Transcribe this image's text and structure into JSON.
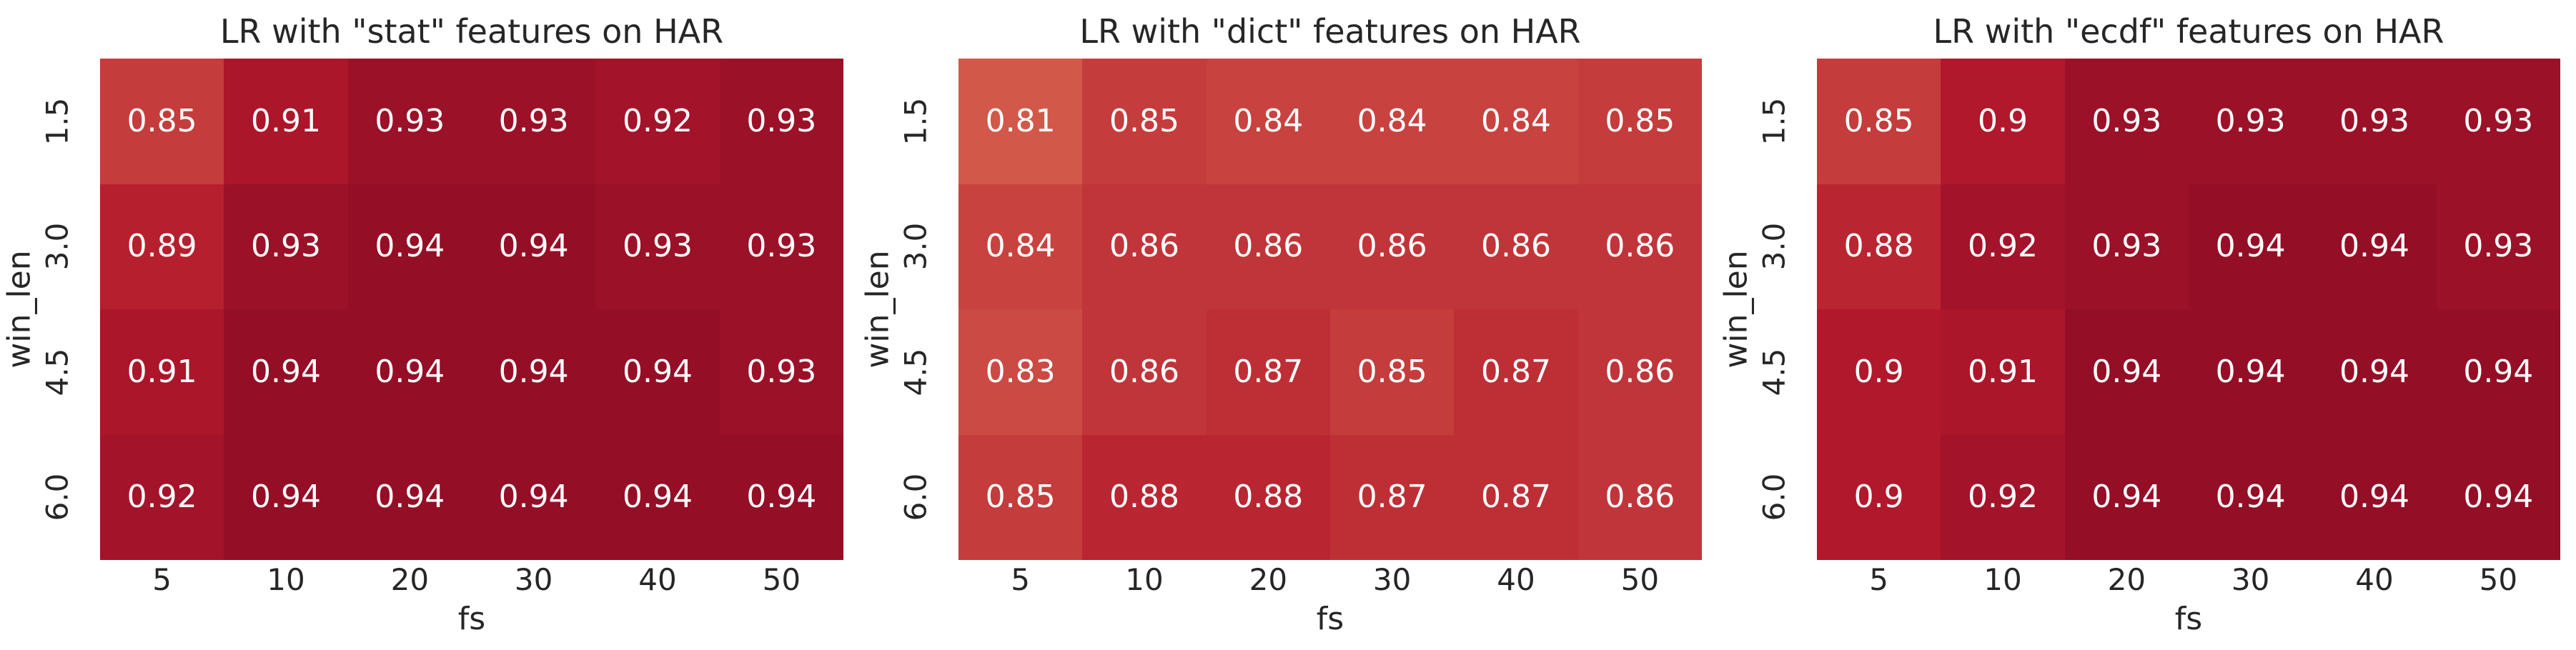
{
  "figure": {
    "background": "#ffffff",
    "text_color": "#262626",
    "annotation_color": "#ffffff",
    "colormap": {
      "name": "RdBu_r",
      "vmin": 0.0,
      "vmax": 1.0,
      "anchors": [
        {
          "value": 0.7,
          "rgb": [
            244,
            165,
            130
          ]
        },
        {
          "value": 0.8,
          "rgb": [
            214,
            96,
            77
          ]
        },
        {
          "value": 0.9,
          "rgb": [
            178,
            24,
            43
          ]
        },
        {
          "value": 1.0,
          "rgb": [
            103,
            0,
            31
          ]
        }
      ]
    }
  },
  "chart_data": [
    {
      "type": "heatmap",
      "title": "LR with \"stat\" features on HAR",
      "xlabel": "fs",
      "ylabel": "win_len",
      "x_ticks": [
        "5",
        "10",
        "20",
        "30",
        "40",
        "50"
      ],
      "y_ticks": [
        "1.5",
        "3.0",
        "4.5",
        "6.0"
      ],
      "annotations_shown": true,
      "legend": "none",
      "values": [
        [
          0.85,
          0.91,
          0.93,
          0.93,
          0.92,
          0.93
        ],
        [
          0.89,
          0.93,
          0.94,
          0.94,
          0.93,
          0.93
        ],
        [
          0.91,
          0.94,
          0.94,
          0.94,
          0.94,
          0.93
        ],
        [
          0.92,
          0.94,
          0.94,
          0.94,
          0.94,
          0.94
        ]
      ]
    },
    {
      "type": "heatmap",
      "title": "LR with \"dict\" features on HAR",
      "xlabel": "fs",
      "ylabel": "win_len",
      "x_ticks": [
        "5",
        "10",
        "20",
        "30",
        "40",
        "50"
      ],
      "y_ticks": [
        "1.5",
        "3.0",
        "4.5",
        "6.0"
      ],
      "annotations_shown": true,
      "legend": "none",
      "values": [
        [
          0.81,
          0.85,
          0.84,
          0.84,
          0.84,
          0.85
        ],
        [
          0.84,
          0.86,
          0.86,
          0.86,
          0.86,
          0.86
        ],
        [
          0.83,
          0.86,
          0.87,
          0.85,
          0.87,
          0.86
        ],
        [
          0.85,
          0.88,
          0.88,
          0.87,
          0.87,
          0.86
        ]
      ]
    },
    {
      "type": "heatmap",
      "title": "LR with \"ecdf\" features on HAR",
      "xlabel": "fs",
      "ylabel": "win_len",
      "x_ticks": [
        "5",
        "10",
        "20",
        "30",
        "40",
        "50"
      ],
      "y_ticks": [
        "1.5",
        "3.0",
        "4.5",
        "6.0"
      ],
      "annotations_shown": true,
      "legend": "none",
      "values": [
        [
          0.85,
          0.9,
          0.93,
          0.93,
          0.93,
          0.93
        ],
        [
          0.88,
          0.92,
          0.93,
          0.94,
          0.94,
          0.93
        ],
        [
          0.9,
          0.91,
          0.94,
          0.94,
          0.94,
          0.94
        ],
        [
          0.9,
          0.92,
          0.94,
          0.94,
          0.94,
          0.94
        ]
      ]
    }
  ]
}
